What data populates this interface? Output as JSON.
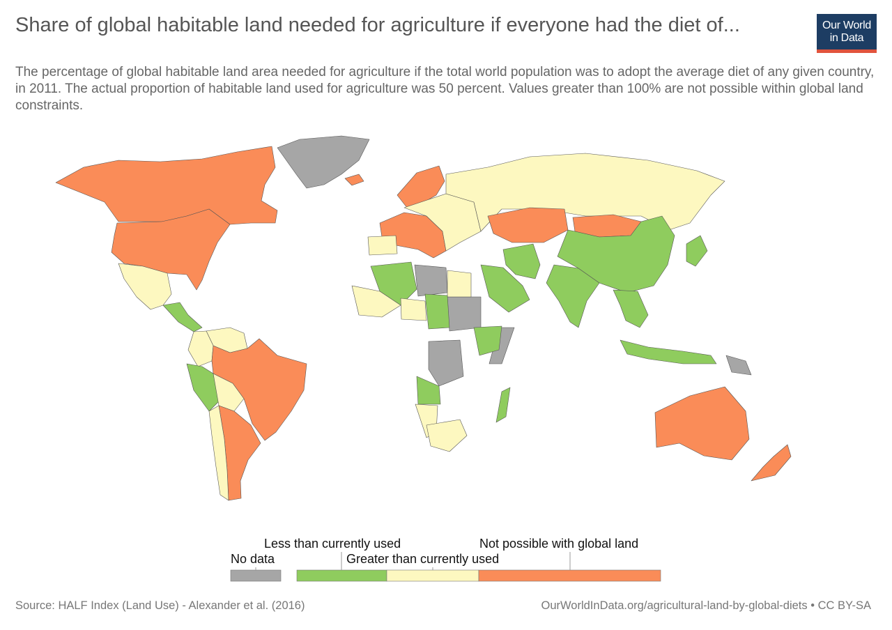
{
  "header": {
    "title": "Share of global habitable land needed for agriculture if everyone had the diet of...",
    "subtitle": "The percentage of global habitable land area needed for agriculture if the total world population was to adopt the average diet of any given country, in 2011. The actual proportion of habitable land used for agriculture was 50 percent. Values greater than 100% are not possible within global land constraints."
  },
  "logo": {
    "line1": "Our World",
    "line2": "in Data",
    "bg_color": "#1d3d63",
    "stripe_color": "#e1543d"
  },
  "legend": {
    "no_data": {
      "label": "No data",
      "color": "#a6a6a6"
    },
    "bins": [
      {
        "label": "Less than currently used",
        "color": "#8fcc5e"
      },
      {
        "label": "Greater than currently used",
        "color": "#fdf8c0"
      },
      {
        "label": "Not possible with global land",
        "color": "#fa8c58"
      }
    ]
  },
  "map_data": {
    "type": "choropleth",
    "categories": [
      "No data",
      "Less than currently used",
      "Greater than currently used",
      "Not possible with global land"
    ],
    "regions": [
      {
        "name": "Canada",
        "category": "Not possible with global land"
      },
      {
        "name": "United States",
        "category": "Not possible with global land"
      },
      {
        "name": "Mexico",
        "category": "Greater than currently used"
      },
      {
        "name": "Central America",
        "category": "Less than currently used"
      },
      {
        "name": "Venezuela",
        "category": "Greater than currently used"
      },
      {
        "name": "Colombia",
        "category": "Greater than currently used"
      },
      {
        "name": "Peru",
        "category": "Less than currently used"
      },
      {
        "name": "Bolivia",
        "category": "Greater than currently used"
      },
      {
        "name": "Brazil",
        "category": "Not possible with global land"
      },
      {
        "name": "Argentina",
        "category": "Not possible with global land"
      },
      {
        "name": "Chile",
        "category": "Greater than currently used"
      },
      {
        "name": "Greenland",
        "category": "No data"
      },
      {
        "name": "Iceland",
        "category": "Not possible with global land"
      },
      {
        "name": "Scandinavia",
        "category": "Not possible with global land"
      },
      {
        "name": "Western Europe",
        "category": "Not possible with global land"
      },
      {
        "name": "Eastern Europe",
        "category": "Greater than currently used"
      },
      {
        "name": "Spain",
        "category": "Greater than currently used"
      },
      {
        "name": "Russia",
        "category": "Greater than currently used"
      },
      {
        "name": "Kazakhstan",
        "category": "Not possible with global land"
      },
      {
        "name": "Mongolia",
        "category": "Not possible with global land"
      },
      {
        "name": "China",
        "category": "Less than currently used"
      },
      {
        "name": "India",
        "category": "Less than currently used"
      },
      {
        "name": "Iran",
        "category": "Less than currently used"
      },
      {
        "name": "Saudi Arabia",
        "category": "Less than currently used"
      },
      {
        "name": "Southeast Asia",
        "category": "Less than currently used"
      },
      {
        "name": "Indonesia",
        "category": "Less than currently used"
      },
      {
        "name": "Papua New Guinea",
        "category": "No data"
      },
      {
        "name": "Japan",
        "category": "Less than currently used"
      },
      {
        "name": "Australia",
        "category": "Not possible with global land"
      },
      {
        "name": "New Zealand",
        "category": "Not possible with global land"
      },
      {
        "name": "Libya",
        "category": "No data"
      },
      {
        "name": "Sudan",
        "category": "No data"
      },
      {
        "name": "Somalia",
        "category": "No data"
      },
      {
        "name": "DR Congo",
        "category": "No data"
      },
      {
        "name": "Egypt",
        "category": "Greater than currently used"
      },
      {
        "name": "Algeria",
        "category": "Less than currently used"
      },
      {
        "name": "Mali",
        "category": "Greater than currently used"
      },
      {
        "name": "Niger",
        "category": "Greater than currently used"
      },
      {
        "name": "Chad",
        "category": "Less than currently used"
      },
      {
        "name": "Ethiopia",
        "category": "Less than currently used"
      },
      {
        "name": "Angola",
        "category": "Less than currently used"
      },
      {
        "name": "Namibia",
        "category": "Greater than currently used"
      },
      {
        "name": "South Africa",
        "category": "Greater than currently used"
      },
      {
        "name": "Madagascar",
        "category": "Less than currently used"
      }
    ]
  },
  "footer": {
    "source": "Source: HALF Index (Land Use) - Alexander et al. (2016)",
    "url": "OurWorldInData.org/agricultural-land-by-global-diets • CC BY-SA"
  }
}
